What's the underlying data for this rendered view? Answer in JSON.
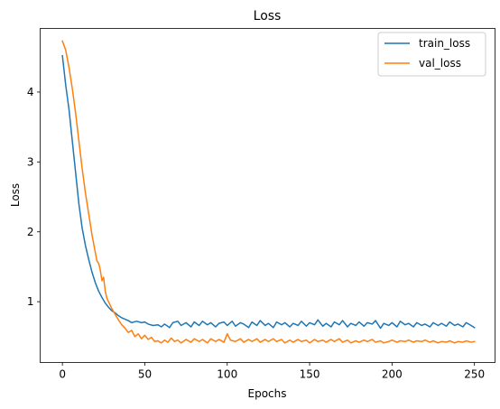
{
  "chart_data": {
    "type": "line",
    "title": "Loss",
    "xlabel": "Epochs",
    "ylabel": "Loss",
    "xlim": [
      -13.5,
      262.5
    ],
    "ylim": [
      0.13,
      4.91
    ],
    "xticks": [
      0,
      50,
      100,
      150,
      200,
      250
    ],
    "yticks": [
      1,
      2,
      3,
      4
    ],
    "grid": false,
    "legend": "top-right",
    "series": [
      {
        "name": "train_loss",
        "color": "#1f77b4",
        "points": [
          [
            0,
            4.52
          ],
          [
            2,
            4.1
          ],
          [
            4,
            3.75
          ],
          [
            6,
            3.3
          ],
          [
            8,
            2.85
          ],
          [
            10,
            2.4
          ],
          [
            12,
            2.05
          ],
          [
            14,
            1.8
          ],
          [
            16,
            1.6
          ],
          [
            18,
            1.42
          ],
          [
            20,
            1.27
          ],
          [
            22,
            1.15
          ],
          [
            24,
            1.06
          ],
          [
            26,
            0.98
          ],
          [
            28,
            0.92
          ],
          [
            30,
            0.87
          ],
          [
            32,
            0.84
          ],
          [
            34,
            0.8
          ],
          [
            36,
            0.77
          ],
          [
            38,
            0.75
          ],
          [
            40,
            0.73
          ],
          [
            42,
            0.7
          ],
          [
            45,
            0.72
          ],
          [
            48,
            0.7
          ],
          [
            50,
            0.71
          ],
          [
            52,
            0.68
          ],
          [
            55,
            0.66
          ],
          [
            58,
            0.67
          ],
          [
            60,
            0.64
          ],
          [
            62,
            0.68
          ],
          [
            65,
            0.63
          ],
          [
            67,
            0.7
          ],
          [
            70,
            0.72
          ],
          [
            72,
            0.66
          ],
          [
            75,
            0.7
          ],
          [
            78,
            0.64
          ],
          [
            80,
            0.71
          ],
          [
            83,
            0.66
          ],
          [
            85,
            0.72
          ],
          [
            88,
            0.67
          ],
          [
            90,
            0.7
          ],
          [
            93,
            0.64
          ],
          [
            95,
            0.69
          ],
          [
            98,
            0.71
          ],
          [
            100,
            0.66
          ],
          [
            103,
            0.72
          ],
          [
            105,
            0.65
          ],
          [
            108,
            0.7
          ],
          [
            110,
            0.68
          ],
          [
            113,
            0.63
          ],
          [
            115,
            0.71
          ],
          [
            118,
            0.66
          ],
          [
            120,
            0.73
          ],
          [
            123,
            0.66
          ],
          [
            125,
            0.69
          ],
          [
            128,
            0.63
          ],
          [
            130,
            0.71
          ],
          [
            133,
            0.67
          ],
          [
            135,
            0.7
          ],
          [
            138,
            0.64
          ],
          [
            140,
            0.69
          ],
          [
            143,
            0.66
          ],
          [
            145,
            0.72
          ],
          [
            148,
            0.65
          ],
          [
            150,
            0.7
          ],
          [
            153,
            0.67
          ],
          [
            155,
            0.74
          ],
          [
            158,
            0.65
          ],
          [
            160,
            0.69
          ],
          [
            163,
            0.64
          ],
          [
            165,
            0.71
          ],
          [
            168,
            0.67
          ],
          [
            170,
            0.73
          ],
          [
            173,
            0.64
          ],
          [
            175,
            0.69
          ],
          [
            178,
            0.66
          ],
          [
            180,
            0.71
          ],
          [
            183,
            0.65
          ],
          [
            185,
            0.7
          ],
          [
            188,
            0.68
          ],
          [
            190,
            0.73
          ],
          [
            193,
            0.62
          ],
          [
            195,
            0.69
          ],
          [
            198,
            0.66
          ],
          [
            200,
            0.7
          ],
          [
            203,
            0.64
          ],
          [
            205,
            0.72
          ],
          [
            208,
            0.67
          ],
          [
            210,
            0.69
          ],
          [
            213,
            0.64
          ],
          [
            215,
            0.7
          ],
          [
            218,
            0.66
          ],
          [
            220,
            0.68
          ],
          [
            223,
            0.64
          ],
          [
            225,
            0.7
          ],
          [
            228,
            0.66
          ],
          [
            230,
            0.69
          ],
          [
            233,
            0.65
          ],
          [
            235,
            0.71
          ],
          [
            238,
            0.66
          ],
          [
            240,
            0.68
          ],
          [
            243,
            0.64
          ],
          [
            245,
            0.7
          ],
          [
            248,
            0.66
          ],
          [
            250,
            0.63
          ]
        ]
      },
      {
        "name": "val_loss",
        "color": "#ff7f0e",
        "points": [
          [
            0,
            4.73
          ],
          [
            2,
            4.6
          ],
          [
            4,
            4.35
          ],
          [
            6,
            4.05
          ],
          [
            8,
            3.7
          ],
          [
            10,
            3.3
          ],
          [
            12,
            2.9
          ],
          [
            14,
            2.55
          ],
          [
            16,
            2.25
          ],
          [
            18,
            1.95
          ],
          [
            20,
            1.7
          ],
          [
            21,
            1.58
          ],
          [
            22,
            1.55
          ],
          [
            23,
            1.45
          ],
          [
            24,
            1.3
          ],
          [
            25,
            1.35
          ],
          [
            26,
            1.15
          ],
          [
            27,
            1.05
          ],
          [
            28,
            1.0
          ],
          [
            30,
            0.9
          ],
          [
            32,
            0.82
          ],
          [
            34,
            0.74
          ],
          [
            36,
            0.67
          ],
          [
            38,
            0.62
          ],
          [
            40,
            0.56
          ],
          [
            42,
            0.59
          ],
          [
            44,
            0.5
          ],
          [
            46,
            0.54
          ],
          [
            48,
            0.47
          ],
          [
            50,
            0.52
          ],
          [
            52,
            0.46
          ],
          [
            54,
            0.49
          ],
          [
            56,
            0.43
          ],
          [
            58,
            0.44
          ],
          [
            60,
            0.41
          ],
          [
            62,
            0.45
          ],
          [
            64,
            0.42
          ],
          [
            66,
            0.48
          ],
          [
            68,
            0.43
          ],
          [
            70,
            0.45
          ],
          [
            72,
            0.41
          ],
          [
            75,
            0.46
          ],
          [
            78,
            0.42
          ],
          [
            80,
            0.47
          ],
          [
            83,
            0.43
          ],
          [
            85,
            0.46
          ],
          [
            88,
            0.41
          ],
          [
            90,
            0.47
          ],
          [
            93,
            0.43
          ],
          [
            95,
            0.46
          ],
          [
            98,
            0.42
          ],
          [
            100,
            0.54
          ],
          [
            102,
            0.45
          ],
          [
            105,
            0.43
          ],
          [
            108,
            0.47
          ],
          [
            110,
            0.42
          ],
          [
            113,
            0.46
          ],
          [
            115,
            0.43
          ],
          [
            118,
            0.47
          ],
          [
            120,
            0.42
          ],
          [
            123,
            0.46
          ],
          [
            125,
            0.43
          ],
          [
            128,
            0.47
          ],
          [
            130,
            0.43
          ],
          [
            133,
            0.46
          ],
          [
            135,
            0.41
          ],
          [
            138,
            0.45
          ],
          [
            140,
            0.42
          ],
          [
            143,
            0.46
          ],
          [
            145,
            0.43
          ],
          [
            148,
            0.45
          ],
          [
            150,
            0.41
          ],
          [
            153,
            0.46
          ],
          [
            155,
            0.43
          ],
          [
            158,
            0.45
          ],
          [
            160,
            0.42
          ],
          [
            163,
            0.46
          ],
          [
            165,
            0.43
          ],
          [
            168,
            0.47
          ],
          [
            170,
            0.42
          ],
          [
            173,
            0.45
          ],
          [
            175,
            0.41
          ],
          [
            178,
            0.44
          ],
          [
            180,
            0.42
          ],
          [
            183,
            0.45
          ],
          [
            185,
            0.43
          ],
          [
            188,
            0.46
          ],
          [
            190,
            0.42
          ],
          [
            193,
            0.44
          ],
          [
            195,
            0.41
          ],
          [
            198,
            0.43
          ],
          [
            200,
            0.45
          ],
          [
            203,
            0.42
          ],
          [
            205,
            0.44
          ],
          [
            208,
            0.43
          ],
          [
            210,
            0.45
          ],
          [
            213,
            0.42
          ],
          [
            215,
            0.44
          ],
          [
            218,
            0.43
          ],
          [
            220,
            0.45
          ],
          [
            223,
            0.42
          ],
          [
            225,
            0.44
          ],
          [
            228,
            0.41
          ],
          [
            230,
            0.43
          ],
          [
            233,
            0.42
          ],
          [
            235,
            0.44
          ],
          [
            238,
            0.41
          ],
          [
            240,
            0.43
          ],
          [
            243,
            0.42
          ],
          [
            245,
            0.44
          ],
          [
            248,
            0.42
          ],
          [
            250,
            0.43
          ]
        ]
      }
    ]
  }
}
